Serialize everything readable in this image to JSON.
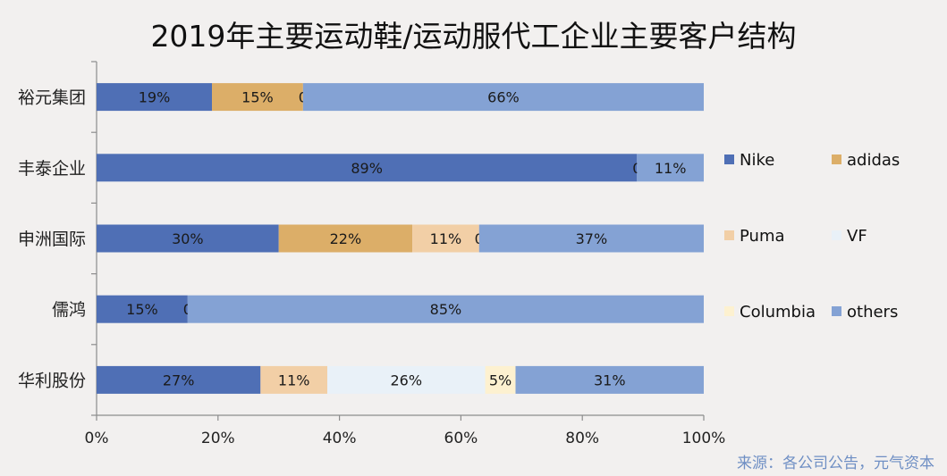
{
  "chart_data": {
    "type": "bar",
    "orientation": "horizontal",
    "stacked": "percent",
    "title": "2019年主要运动鞋/运动服代工企业主要客户结构",
    "categories": [
      "裕元集团",
      "丰泰企业",
      "申洲国际",
      "儒鸿",
      "华利股份"
    ],
    "series": [
      {
        "name": "Nike",
        "color": "#4f6fb5",
        "values": [
          19,
          89,
          30,
          15,
          27
        ]
      },
      {
        "name": "adidas",
        "color": "#dcae68",
        "values": [
          15,
          null,
          22,
          null,
          null
        ]
      },
      {
        "name": "Puma",
        "color": "#f2cfa6",
        "values": [
          null,
          null,
          11,
          null,
          11
        ]
      },
      {
        "name": "VF",
        "color": "#e9f1f8",
        "values": [
          0,
          0,
          0,
          0,
          26
        ]
      },
      {
        "name": "Columbia",
        "color": "#fdf1d0",
        "values": [
          null,
          null,
          null,
          null,
          5
        ]
      },
      {
        "name": "others",
        "color": "#84a2d4",
        "values": [
          66,
          11,
          37,
          85,
          31
        ]
      }
    ],
    "xlim": [
      0,
      100
    ],
    "xticks": [
      "0%",
      "20%",
      "40%",
      "60%",
      "80%",
      "100%"
    ],
    "legend_position": "right",
    "grid": false
  },
  "source": "来源：各公司公告，元气资本"
}
